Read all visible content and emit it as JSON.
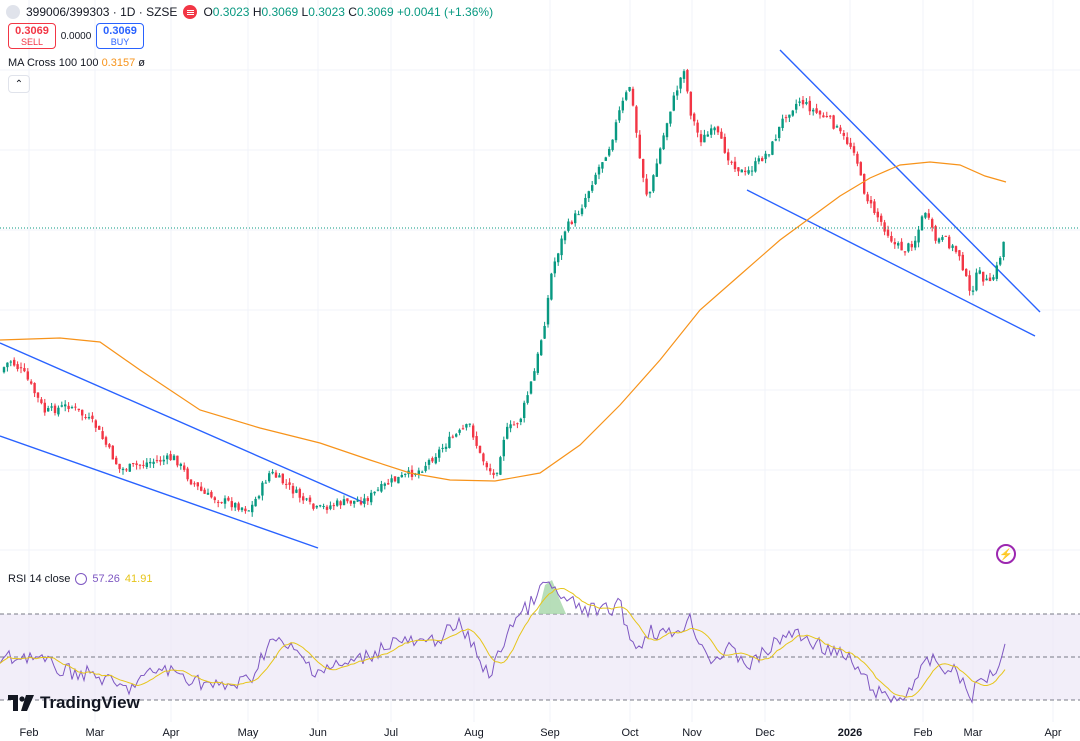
{
  "header": {
    "symbol": "399006/399303 · 1D · SZSE",
    "ohlc": {
      "o_label": "O",
      "o": "0.3023",
      "h_label": "H",
      "h": "0.3069",
      "l_label": "L",
      "l": "0.3023",
      "c_label": "C",
      "c": "0.3069",
      "change": "+0.0041 (+1.36%)"
    }
  },
  "trade": {
    "sell_price": "0.3069",
    "sell_label": "SELL",
    "spread": "0.0000",
    "buy_price": "0.3069",
    "buy_label": "BUY"
  },
  "ma_legend": {
    "label": "MA Cross 100 100",
    "value": "0.3157",
    "extra": "ø"
  },
  "collapse_icon": "chevron-up-icon",
  "rsi_legend": {
    "label": "RSI 14 close",
    "value1": "57.26",
    "value2": "41.91"
  },
  "logo": {
    "text": "TradingView"
  },
  "colors": {
    "up": "#089981",
    "down": "#f23645",
    "ma": "#f7931a",
    "trendline": "#2962ff",
    "rsi": "#7e57c2",
    "rsi_ma": "#e6c51a",
    "rsi_band": "#ede7f6"
  },
  "chart_data": [
    {
      "type": "candlestick",
      "x_ticks": [
        "Feb",
        "Mar",
        "Apr",
        "May",
        "Jun",
        "Jul",
        "Aug",
        "Sep",
        "Oct",
        "Nov",
        "Dec",
        "2026",
        "Feb",
        "Mar",
        "Apr"
      ],
      "y_range_estimate": [
        0.18,
        0.42
      ],
      "series": [
        {
          "name": "MA Cross 100 100",
          "type": "line",
          "last_value": 0.3157
        }
      ],
      "price_path": [
        {
          "x": "Feb",
          "y": 0.255
        },
        {
          "x": "Mar",
          "y": 0.245
        },
        {
          "x": "Apr",
          "y": 0.215
        },
        {
          "x": "May",
          "y": 0.2
        },
        {
          "x": "Jun",
          "y": 0.195
        },
        {
          "x": "Jul",
          "y": 0.205
        },
        {
          "x": "Aug",
          "y": 0.22
        },
        {
          "x": "Sep",
          "y": 0.33
        },
        {
          "x": "Oct",
          "y": 0.39
        },
        {
          "x": "Nov",
          "y": 0.37
        },
        {
          "x": "Dec",
          "y": 0.365
        },
        {
          "x": "2026",
          "y": 0.32
        },
        {
          "x": "Feb",
          "y": 0.3
        },
        {
          "x": "Mar",
          "y": 0.295
        },
        {
          "x": "Mar",
          "y": 0.3069
        }
      ],
      "last_close": 0.3069,
      "trendline_note": "descending channels"
    },
    {
      "type": "line",
      "series": [
        {
          "name": "RSI 14 close",
          "last_value": 57.26
        },
        {
          "name": "RSI MA",
          "last_value": 41.91
        }
      ],
      "bands": [
        30,
        50,
        70
      ]
    }
  ]
}
